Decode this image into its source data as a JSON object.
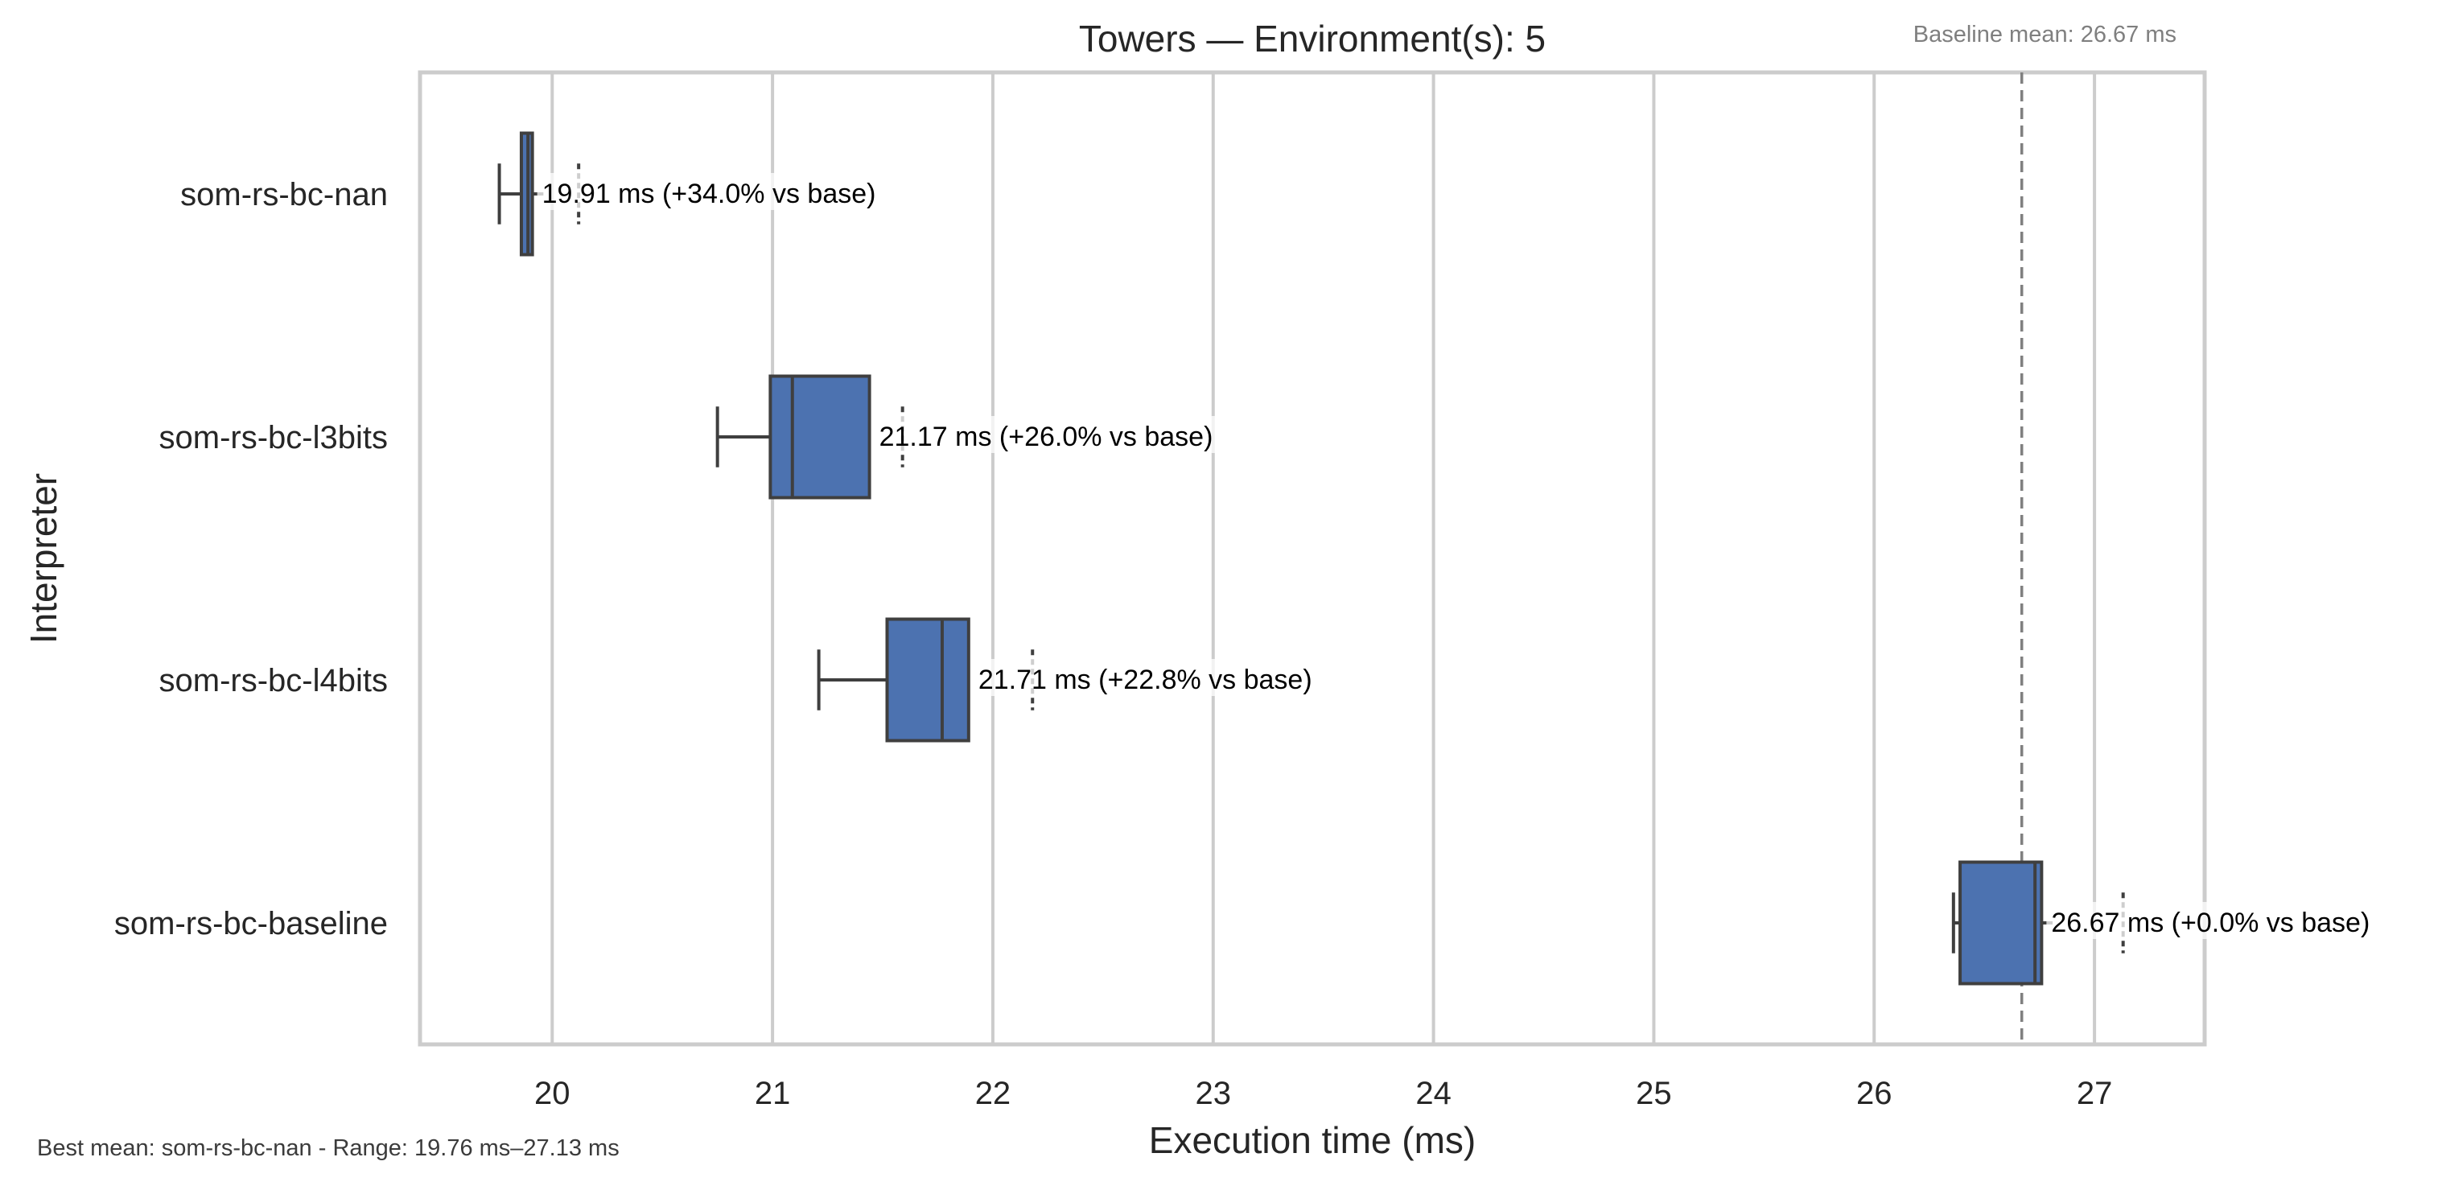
{
  "chart_data": {
    "type": "boxplot",
    "orientation": "horizontal",
    "title": "Towers — Environment(s): 5",
    "xlabel": "Execution time (ms)",
    "ylabel": "Interpreter",
    "xlim": [
      19.4,
      27.5
    ],
    "xticks": [
      20,
      21,
      22,
      23,
      24,
      25,
      26,
      27
    ],
    "grid": "vertical",
    "box_color": "#4c72b0",
    "categories": [
      "som-rs-bc-nan",
      "som-rs-bc-l3bits",
      "som-rs-bc-l4bits",
      "som-rs-bc-baseline"
    ],
    "series": [
      {
        "category": "som-rs-bc-nan",
        "whisker_low": 19.76,
        "q1": 19.86,
        "median": 19.89,
        "q3": 19.91,
        "whisker_high": 19.96,
        "flier": 20.12,
        "mean": 19.91,
        "annotation": "19.91 ms  (+34.0% vs base)"
      },
      {
        "category": "som-rs-bc-l3bits",
        "whisker_low": 20.75,
        "q1": 20.99,
        "median": 21.09,
        "q3": 21.44,
        "whisker_high": 21.44,
        "flier": 21.59,
        "mean": 21.17,
        "annotation": "21.17 ms  (+26.0% vs base)"
      },
      {
        "category": "som-rs-bc-l4bits",
        "whisker_low": 21.21,
        "q1": 21.52,
        "median": 21.77,
        "q3": 21.89,
        "whisker_high": 21.89,
        "flier": 22.18,
        "mean": 21.71,
        "annotation": "21.71 ms  (+22.8% vs base)"
      },
      {
        "category": "som-rs-bc-baseline",
        "whisker_low": 26.36,
        "q1": 26.39,
        "median": 26.73,
        "q3": 26.76,
        "whisker_high": 26.81,
        "flier": 27.13,
        "mean": 26.67,
        "annotation": "26.67 ms  (+0.0% vs base)"
      }
    ],
    "baseline": {
      "value": 26.67,
      "label": "Baseline mean: 26.67 ms",
      "color": "#808080"
    },
    "footnote": "Best mean: som-rs-bc-nan - Range: 19.76 ms–27.13 ms"
  }
}
